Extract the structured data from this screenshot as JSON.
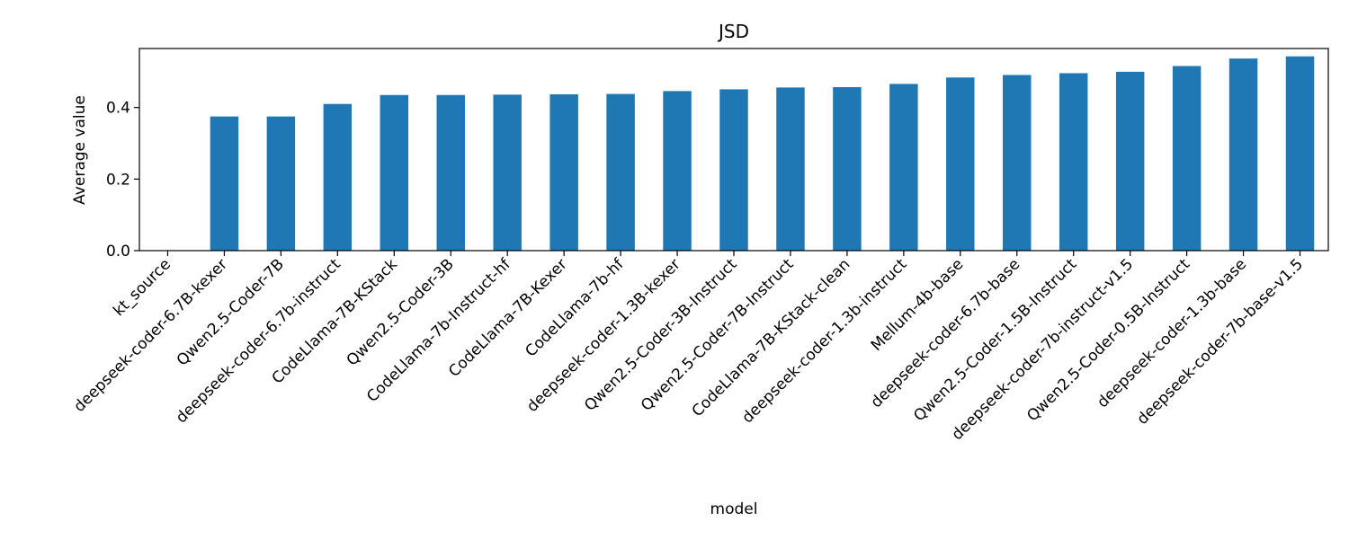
{
  "chart_data": {
    "type": "bar",
    "title": "JSD",
    "xlabel": "model",
    "ylabel": "Average value",
    "ylim": [
      0,
      0.565
    ],
    "yticks": [
      0.0,
      0.2,
      0.4
    ],
    "ytick_labels": [
      "0.0",
      "0.2",
      "0.4"
    ],
    "grid": false,
    "bar_color": "#1f77b4",
    "categories": [
      "kt_source",
      "deepseek-coder-6.7B-kexer",
      "Qwen2.5-Coder-7B",
      "deepseek-coder-6.7b-instruct",
      "CodeLlama-7B-KStack",
      "Qwen2.5-Coder-3B",
      "CodeLlama-7b-Instruct-hf",
      "CodeLlama-7B-Kexer",
      "CodeLlama-7b-hf",
      "deepseek-coder-1.3B-kexer",
      "Qwen2.5-Coder-3B-Instruct",
      "Qwen2.5-Coder-7B-Instruct",
      "CodeLlama-7B-KStack-clean",
      "deepseek-coder-1.3b-instruct",
      "Mellum-4b-base",
      "deepseek-coder-6.7b-base",
      "Qwen2.5-Coder-1.5B-Instruct",
      "deepseek-coder-7b-instruct-v1.5",
      "Qwen2.5-Coder-0.5B-Instruct",
      "deepseek-coder-1.3b-base",
      "deepseek-coder-7b-base-v1.5"
    ],
    "values": [
      0.0,
      0.375,
      0.375,
      0.41,
      0.435,
      0.435,
      0.436,
      0.437,
      0.438,
      0.446,
      0.451,
      0.456,
      0.457,
      0.466,
      0.484,
      0.491,
      0.496,
      0.5,
      0.516,
      0.537,
      0.543
    ]
  }
}
